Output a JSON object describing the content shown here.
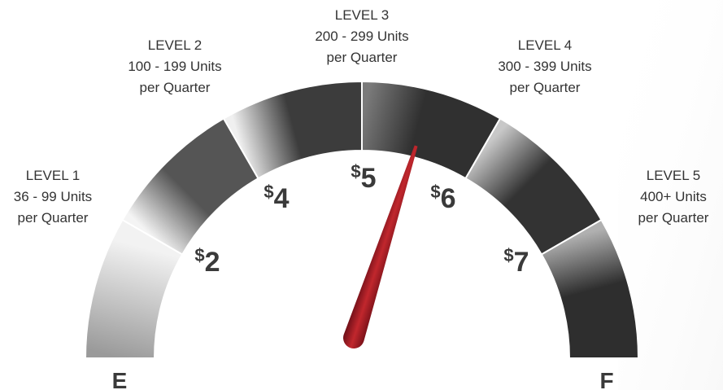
{
  "levels": [
    {
      "title": "LEVEL 1",
      "range": "36 - 99 Units",
      "period": "per Quarter"
    },
    {
      "title": "LEVEL 2",
      "range": "100 - 199 Units",
      "period": "per Quarter"
    },
    {
      "title": "LEVEL 3",
      "range": "200 - 299 Units",
      "period": "per Quarter"
    },
    {
      "title": "LEVEL 4",
      "range": "300 - 399 Units",
      "period": "per Quarter"
    },
    {
      "title": "LEVEL 5",
      "range": "400+ Units",
      "period": "per Quarter"
    }
  ],
  "prices": [
    {
      "currency": "$",
      "amount": "2"
    },
    {
      "currency": "$",
      "amount": "4"
    },
    {
      "currency": "$",
      "amount": "5"
    },
    {
      "currency": "$",
      "amount": "6"
    },
    {
      "currency": "$",
      "amount": "7"
    }
  ],
  "empty_label": "E",
  "full_label": "F"
}
